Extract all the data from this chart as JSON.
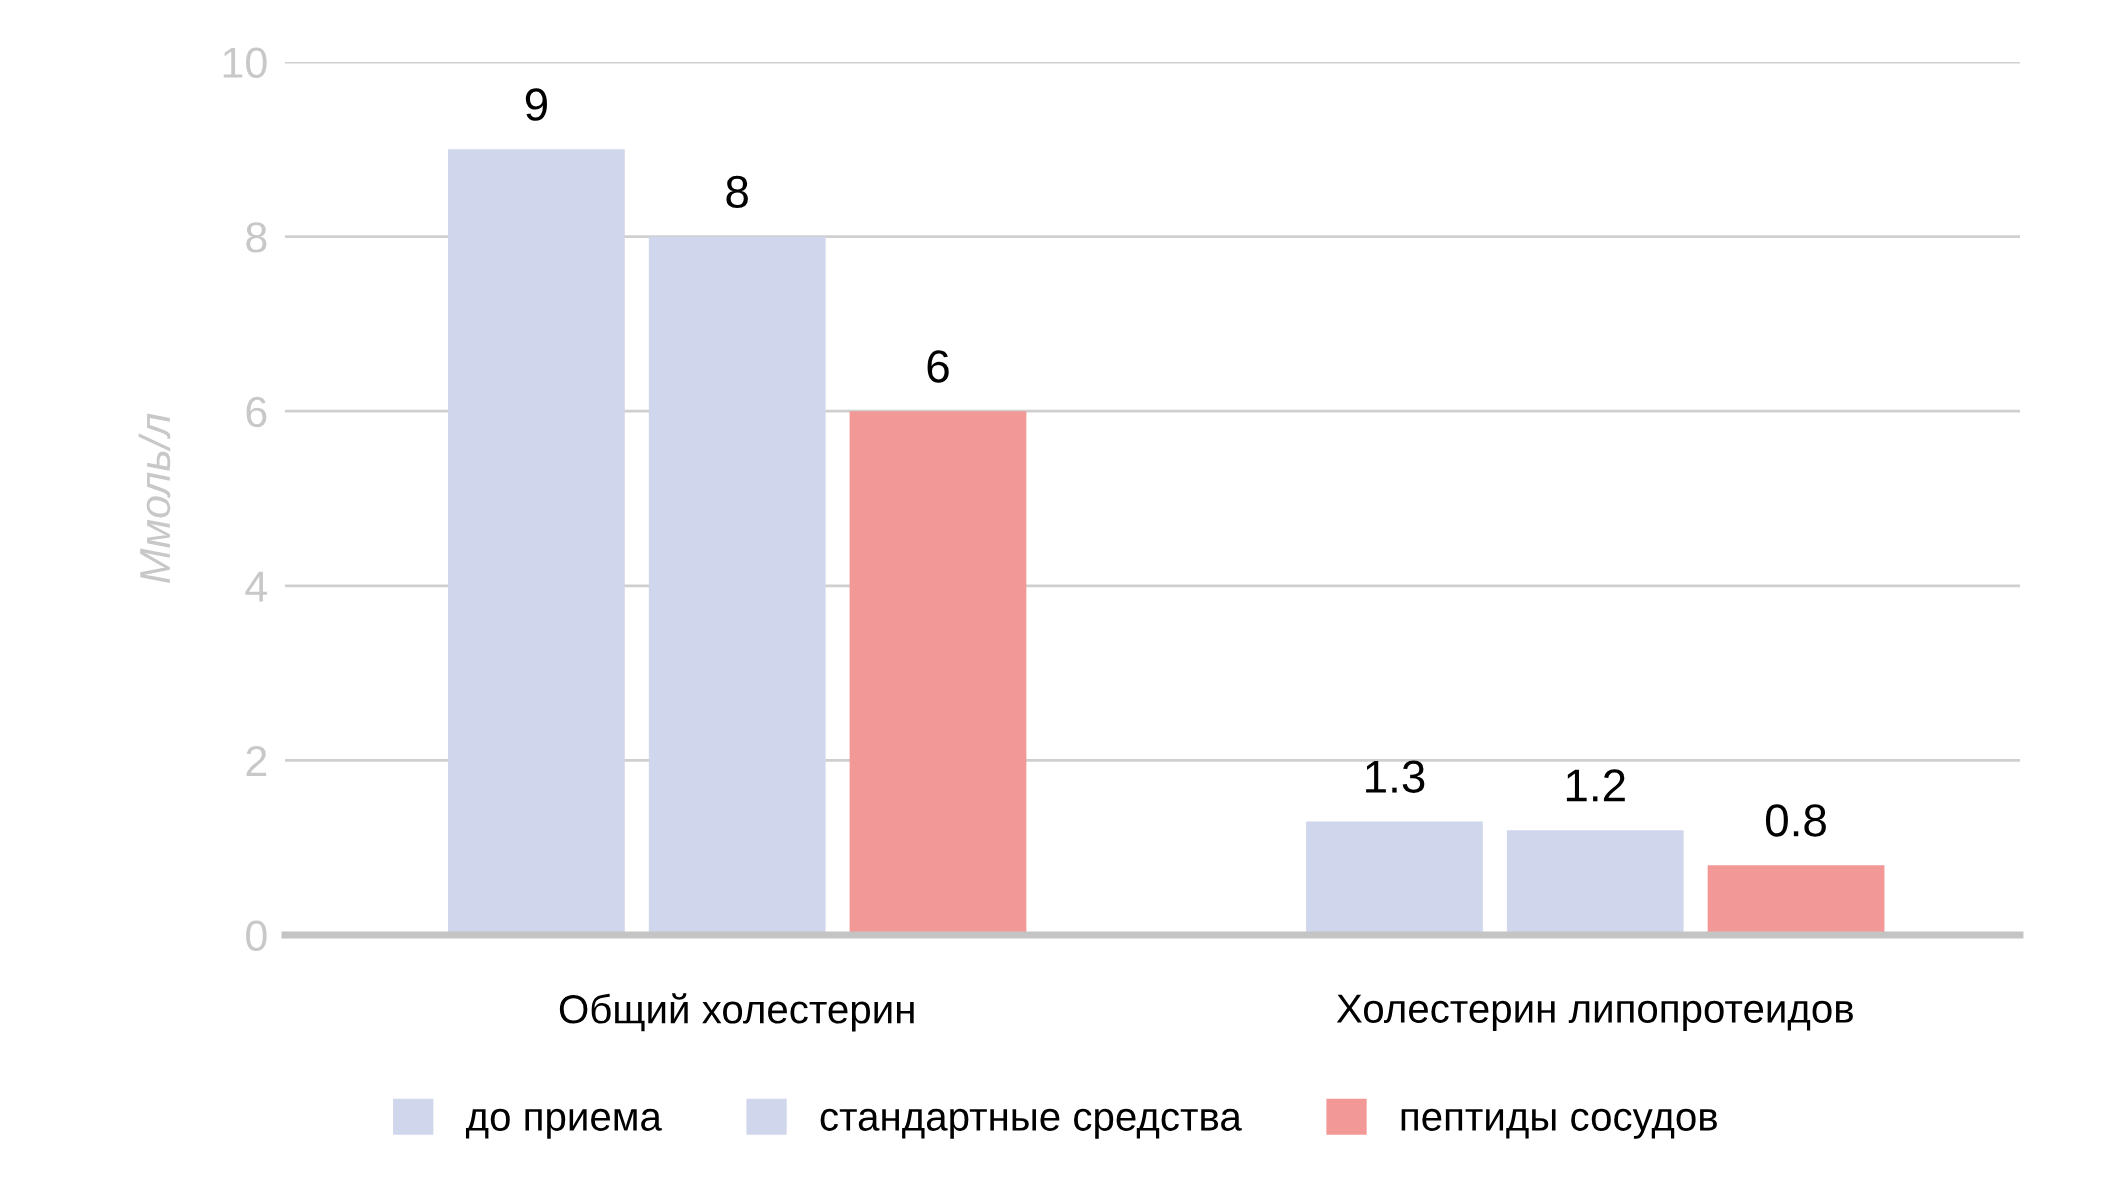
{
  "chart_data": {
    "type": "bar",
    "ylabel": "Ммоль/л",
    "categories": [
      "Общий холестерин",
      "Холестерин липопротеидов"
    ],
    "series": [
      {
        "name": "до приема",
        "color": "#d0d6eb",
        "values": [
          9,
          1.3
        ]
      },
      {
        "name": "стандартные средства",
        "color": "#d0d6eb",
        "values": [
          8,
          1.2
        ]
      },
      {
        "name": "пептиды сосудов",
        "color": "#f29896",
        "values": [
          6,
          0.8
        ]
      }
    ],
    "ylim": [
      0,
      10
    ],
    "yticks": [
      0,
      2,
      4,
      6,
      8,
      10
    ],
    "grid": "y",
    "legend": "bottom",
    "data_labels": true
  }
}
